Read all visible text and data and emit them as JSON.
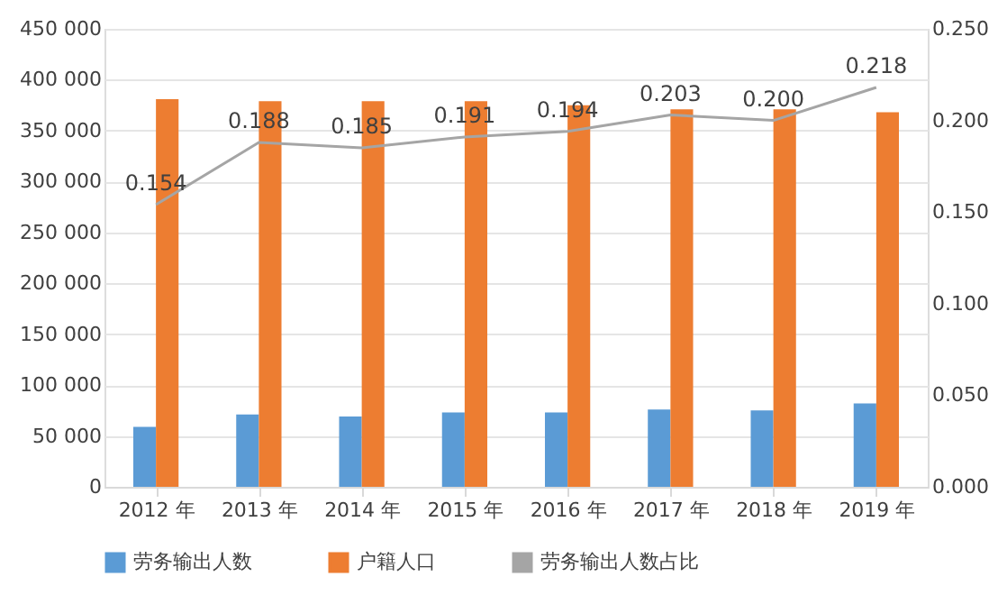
{
  "chart_data": {
    "type": "bar",
    "categories": [
      "2012 年",
      "2013 年",
      "2014 年",
      "2015 年",
      "2016 年",
      "2017 年",
      "2018 年",
      "2019 年"
    ],
    "series": [
      {
        "name": "劳务输出人数",
        "color": "#5b9bd5",
        "values": [
          59000,
          71000,
          69000,
          73000,
          73000,
          76000,
          75000,
          82000
        ]
      },
      {
        "name": "户籍人口",
        "color": "#ed7d31",
        "values": [
          381000,
          379000,
          379000,
          379000,
          375000,
          371000,
          371000,
          368000
        ]
      },
      {
        "name": "劳务输出人数占比",
        "type": "line",
        "axis": "y2",
        "color": "#a5a5a5",
        "values": [
          0.154,
          0.188,
          0.185,
          0.191,
          0.194,
          0.203,
          0.2,
          0.218
        ],
        "value_labels": [
          "0.154",
          "0.188",
          "0.185",
          "0.191",
          "0.194",
          "0.203",
          "0.200",
          "0.218"
        ]
      }
    ],
    "ylim": [
      0,
      450000
    ],
    "yticks": [
      0,
      {
        "value": 50000,
        "label": "50 000"
      },
      {
        "value": 100000,
        "label": "100 000"
      },
      {
        "value": 150000,
        "label": "150 000"
      },
      {
        "value": 200000,
        "label": "200 000"
      },
      {
        "value": 250000,
        "label": "250 000"
      },
      {
        "value": 300000,
        "label": "300 000"
      },
      {
        "value": 350000,
        "label": "350 000"
      },
      {
        "value": 400000,
        "label": "400 000"
      },
      {
        "value": 450000,
        "label": "450 000"
      }
    ],
    "y2lim": [
      0,
      0.25
    ],
    "y2ticks": [
      {
        "value": 0,
        "label": "0.000"
      },
      {
        "value": 0.05,
        "label": "0.050"
      },
      {
        "value": 0.1,
        "label": "0.100"
      },
      {
        "value": 0.15,
        "label": "0.150"
      },
      {
        "value": 0.2,
        "label": "0.200"
      },
      {
        "value": 0.25,
        "label": "0.250"
      }
    ],
    "grid": "y",
    "legend": "bottom",
    "marker": "none",
    "line_style": "solid"
  }
}
